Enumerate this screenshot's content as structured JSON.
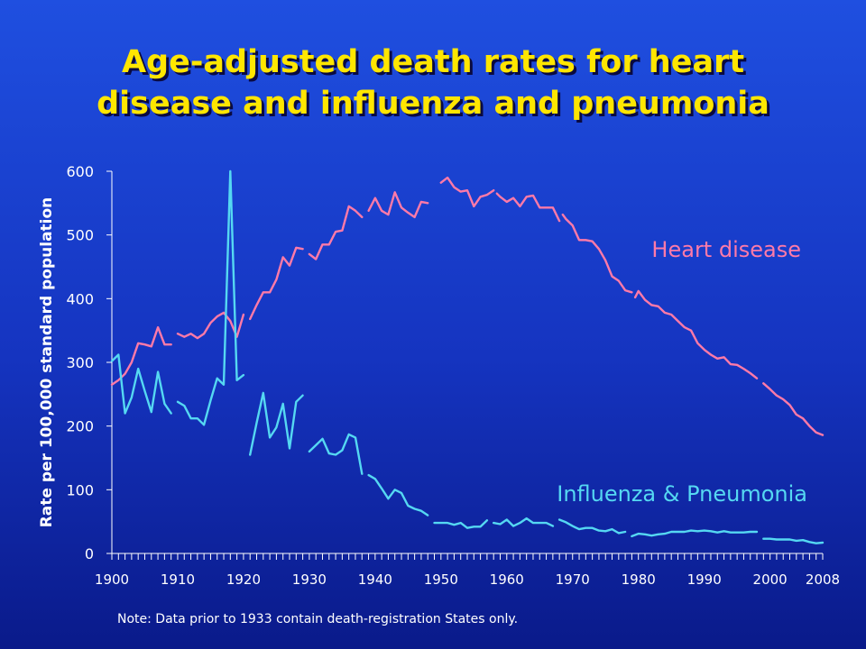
{
  "title": {
    "line1": "Age-adjusted death rates for heart",
    "line2": "disease and influenza and pneumonia"
  },
  "note": "Note: Data prior to 1933 contain death-registration States only.",
  "colors": {
    "heart": "#ff7aa8",
    "flu": "#55d8f2",
    "axis": "#ffffff",
    "heart_label": "#ff7aa8",
    "flu_label": "#55d8f2"
  },
  "chart_data": {
    "type": "line",
    "title": "Age-adjusted death rates for heart disease and influenza and pneumonia",
    "xlabel": "",
    "ylabel": "Rate per 100,000 standard population",
    "xlim": [
      1900,
      2008
    ],
    "ylim": [
      0,
      600
    ],
    "yticks": [
      0,
      100,
      200,
      300,
      400,
      500,
      600
    ],
    "xtick_labels": [
      "1900",
      "1910",
      "1920",
      "1930",
      "1940",
      "1950",
      "1960",
      "1970",
      "1980",
      "1990",
      "2000",
      "2008"
    ],
    "xtick_values": [
      1900,
      1910,
      1920,
      1930,
      1940,
      1950,
      1960,
      1970,
      1980,
      1990,
      2000,
      2008
    ],
    "grid": false,
    "legend": "direct labels",
    "series": [
      {
        "name": "Heart disease",
        "segments": [
          [
            [
              1900,
              265
            ],
            [
              1901,
              272
            ],
            [
              1902,
              282
            ],
            [
              1903,
              300
            ],
            [
              1904,
              330
            ],
            [
              1905,
              328
            ],
            [
              1906,
              325
            ],
            [
              1907,
              355
            ],
            [
              1908,
              328
            ],
            [
              1909,
              328
            ]
          ],
          [
            [
              1910,
              345
            ],
            [
              1911,
              340
            ],
            [
              1912,
              345
            ],
            [
              1913,
              338
            ],
            [
              1914,
              345
            ],
            [
              1915,
              362
            ],
            [
              1916,
              372
            ],
            [
              1917,
              378
            ],
            [
              1918,
              365
            ],
            [
              1919,
              340
            ],
            [
              1920,
              375
            ]
          ],
          [
            [
              1921,
              368
            ],
            [
              1922,
              390
            ],
            [
              1923,
              410
            ],
            [
              1924,
              410
            ],
            [
              1925,
              430
            ],
            [
              1926,
              465
            ],
            [
              1927,
              452
            ],
            [
              1928,
              480
            ],
            [
              1929,
              478
            ]
          ],
          [
            [
              1930,
              470
            ],
            [
              1931,
              462
            ],
            [
              1932,
              485
            ],
            [
              1933,
              485
            ],
            [
              1934,
              505
            ],
            [
              1935,
              507
            ],
            [
              1936,
              545
            ],
            [
              1937,
              538
            ],
            [
              1938,
              528
            ]
          ],
          [
            [
              1939,
              538
            ],
            [
              1940,
              558
            ],
            [
              1941,
              538
            ],
            [
              1942,
              532
            ],
            [
              1943,
              567
            ],
            [
              1944,
              543
            ],
            [
              1945,
              535
            ],
            [
              1946,
              528
            ],
            [
              1947,
              552
            ],
            [
              1948,
              550
            ]
          ],
          [
            [
              1950,
              582
            ],
            [
              1951,
              590
            ],
            [
              1952,
              575
            ],
            [
              1953,
              568
            ],
            [
              1954,
              570
            ],
            [
              1955,
              545
            ],
            [
              1956,
              560
            ],
            [
              1957,
              563
            ],
            [
              1958,
              570
            ]
          ],
          [
            [
              1958.5,
              565
            ],
            [
              1959,
              560
            ],
            [
              1960,
              552
            ],
            [
              1961,
              558
            ],
            [
              1962,
              545
            ],
            [
              1963,
              560
            ],
            [
              1964,
              562
            ],
            [
              1965,
              543
            ],
            [
              1966,
              543
            ],
            [
              1967,
              543
            ],
            [
              1968,
              522
            ]
          ],
          [
            [
              1968.5,
              532
            ],
            [
              1969,
              525
            ],
            [
              1970,
              515
            ],
            [
              1971,
              492
            ],
            [
              1972,
              492
            ],
            [
              1973,
              490
            ],
            [
              1974,
              478
            ],
            [
              1975,
              460
            ],
            [
              1976,
              435
            ],
            [
              1977,
              428
            ],
            [
              1978,
              413
            ],
            [
              1979,
              410
            ]
          ],
          [
            [
              1979.5,
              402
            ],
            [
              1980,
              412
            ],
            [
              1981,
              398
            ],
            [
              1982,
              390
            ],
            [
              1983,
              388
            ],
            [
              1984,
              378
            ],
            [
              1985,
              375
            ],
            [
              1986,
              365
            ],
            [
              1987,
              355
            ],
            [
              1988,
              350
            ],
            [
              1989,
              330
            ],
            [
              1990,
              320
            ],
            [
              1991,
              312
            ],
            [
              1992,
              306
            ],
            [
              1993,
              308
            ],
            [
              1994,
              297
            ],
            [
              1995,
              296
            ],
            [
              1996,
              290
            ],
            [
              1997,
              283
            ],
            [
              1998,
              275
            ]
          ],
          [
            [
              1999,
              267
            ],
            [
              2000,
              258
            ],
            [
              2001,
              248
            ],
            [
              2002,
              242
            ],
            [
              2003,
              233
            ],
            [
              2004,
              218
            ],
            [
              2005,
              212
            ],
            [
              2006,
              200
            ],
            [
              2007,
              190
            ],
            [
              2008,
              186
            ]
          ]
        ]
      },
      {
        "name": "Influenza & Pneumonia",
        "segments": [
          [
            [
              1900,
              302
            ],
            [
              1901,
              312
            ],
            [
              1902,
              220
            ],
            [
              1903,
              245
            ],
            [
              1904,
              290
            ],
            [
              1905,
              255
            ],
            [
              1906,
              222
            ],
            [
              1907,
              285
            ],
            [
              1908,
              235
            ],
            [
              1909,
              220
            ]
          ],
          [
            [
              1910,
              238
            ],
            [
              1911,
              232
            ],
            [
              1912,
              212
            ],
            [
              1913,
              212
            ],
            [
              1914,
              202
            ],
            [
              1915,
              240
            ],
            [
              1916,
              275
            ],
            [
              1917,
              265
            ],
            [
              1918,
              600
            ],
            [
              1919,
              272
            ],
            [
              1920,
              280
            ]
          ],
          [
            [
              1921,
              155
            ],
            [
              1922,
              205
            ],
            [
              1923,
              252
            ],
            [
              1924,
              182
            ],
            [
              1925,
              198
            ],
            [
              1926,
              235
            ],
            [
              1927,
              165
            ],
            [
              1928,
              238
            ],
            [
              1929,
              248
            ]
          ],
          [
            [
              1930,
              160
            ],
            [
              1931,
              170
            ],
            [
              1932,
              180
            ],
            [
              1933,
              157
            ],
            [
              1934,
              155
            ],
            [
              1935,
              162
            ],
            [
              1936,
              187
            ],
            [
              1937,
              182
            ],
            [
              1938,
              125
            ]
          ],
          [
            [
              1939,
              123
            ],
            [
              1940,
              117
            ],
            [
              1941,
              102
            ],
            [
              1942,
              86
            ],
            [
              1943,
              100
            ],
            [
              1944,
              95
            ],
            [
              1945,
              75
            ],
            [
              1946,
              70
            ],
            [
              1947,
              67
            ],
            [
              1948,
              60
            ]
          ],
          [
            [
              1949,
              48
            ],
            [
              1950,
              48
            ],
            [
              1951,
              48
            ],
            [
              1952,
              45
            ],
            [
              1953,
              48
            ],
            [
              1954,
              40
            ],
            [
              1955,
              42
            ],
            [
              1956,
              42
            ],
            [
              1957,
              52
            ]
          ],
          [
            [
              1958,
              48
            ],
            [
              1959,
              46
            ],
            [
              1960,
              53
            ],
            [
              1961,
              43
            ],
            [
              1962,
              48
            ],
            [
              1963,
              55
            ],
            [
              1964,
              48
            ],
            [
              1965,
              48
            ],
            [
              1966,
              48
            ],
            [
              1967,
              43
            ]
          ],
          [
            [
              1968,
              53
            ],
            [
              1969,
              49
            ],
            [
              1970,
              43
            ],
            [
              1971,
              38
            ],
            [
              1972,
              40
            ],
            [
              1973,
              40
            ],
            [
              1974,
              36
            ],
            [
              1975,
              35
            ],
            [
              1976,
              38
            ],
            [
              1977,
              32
            ],
            [
              1978,
              34
            ]
          ],
          [
            [
              1979,
              27
            ],
            [
              1980,
              31
            ],
            [
              1981,
              30
            ],
            [
              1982,
              28
            ],
            [
              1983,
              30
            ],
            [
              1984,
              31
            ],
            [
              1985,
              34
            ],
            [
              1986,
              34
            ],
            [
              1987,
              34
            ],
            [
              1988,
              36
            ],
            [
              1989,
              35
            ],
            [
              1990,
              36
            ],
            [
              1991,
              35
            ],
            [
              1992,
              33
            ],
            [
              1993,
              35
            ],
            [
              1994,
              33
            ],
            [
              1995,
              33
            ],
            [
              1996,
              33
            ],
            [
              1997,
              34
            ],
            [
              1998,
              34
            ]
          ],
          [
            [
              1999,
              23
            ],
            [
              2000,
              23
            ],
            [
              2001,
              22
            ],
            [
              2002,
              22
            ],
            [
              2003,
              22
            ],
            [
              2004,
              20
            ],
            [
              2005,
              21
            ],
            [
              2006,
              18
            ],
            [
              2007,
              16
            ],
            [
              2008,
              17
            ]
          ]
        ]
      }
    ],
    "annotations": [
      {
        "text": "Heart disease",
        "series": "Heart disease"
      },
      {
        "text": "Influenza & Pneumonia",
        "series": "Influenza & Pneumonia"
      }
    ]
  }
}
